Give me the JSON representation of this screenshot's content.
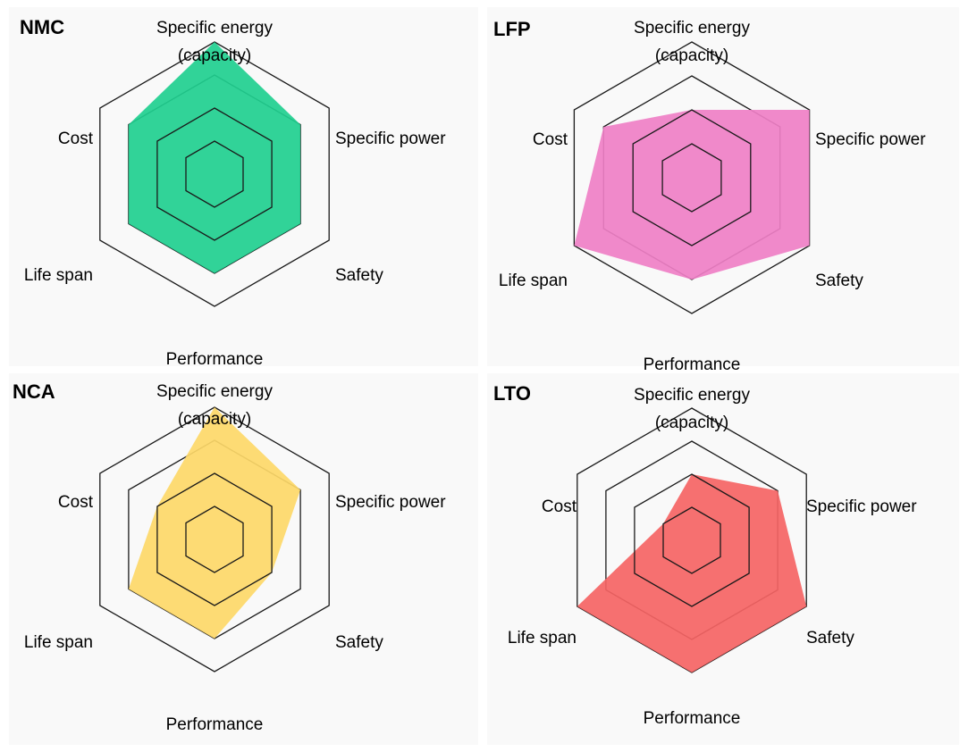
{
  "chart_data": [
    {
      "type": "radar",
      "title": "NMC",
      "axes": [
        "Specific energy (capacity)",
        "Specific power",
        "Safety",
        "Performance",
        "Life span",
        "Cost"
      ],
      "axis_label_lines": [
        [
          "Specific energy",
          "(capacity)"
        ],
        [
          "Specific power"
        ],
        [
          "Safety"
        ],
        [
          "Performance"
        ],
        [
          "Life span"
        ],
        [
          "Cost"
        ]
      ],
      "scale_max": 4,
      "rings": [
        1,
        2,
        3,
        4
      ],
      "values": [
        4,
        3,
        3,
        3,
        3,
        3
      ],
      "fill_color": "#1fcf8f"
    },
    {
      "type": "radar",
      "title": "LFP",
      "axes": [
        "Specific energy (capacity)",
        "Specific power",
        "Safety",
        "Performance",
        "Life span",
        "Cost"
      ],
      "axis_label_lines": [
        [
          "Specific energy",
          "(capacity)"
        ],
        [
          "Specific power"
        ],
        [
          "Safety"
        ],
        [
          "Performance"
        ],
        [
          "Life span"
        ],
        [
          "Cost"
        ]
      ],
      "scale_max": 4,
      "rings": [
        1,
        2,
        3,
        4
      ],
      "values": [
        2,
        4,
        4,
        3,
        4,
        3
      ],
      "fill_color": "#ef7fc6"
    },
    {
      "type": "radar",
      "title": "NCA",
      "axes": [
        "Specific energy (capacity)",
        "Specific power",
        "Safety",
        "Performance",
        "Life span",
        "Cost"
      ],
      "axis_label_lines": [
        [
          "Specific energy",
          "(capacity)"
        ],
        [
          "Specific power"
        ],
        [
          "Safety"
        ],
        [
          "Performance"
        ],
        [
          "Life span"
        ],
        [
          "Cost"
        ]
      ],
      "scale_max": 4,
      "rings": [
        1,
        2,
        3,
        4
      ],
      "values": [
        4,
        3,
        2,
        3,
        3,
        2
      ],
      "fill_color": "#fdd868"
    },
    {
      "type": "radar",
      "title": "LTO",
      "axes": [
        "Specific energy (capacity)",
        "Specific power",
        "Safety",
        "Performance",
        "Life span",
        "Cost"
      ],
      "axis_label_lines": [
        [
          "Specific energy",
          "(capacity)"
        ],
        [
          "Specific power"
        ],
        [
          "Safety"
        ],
        [
          "Performance"
        ],
        [
          "Life span"
        ],
        [
          "Cost"
        ]
      ],
      "scale_max": 4,
      "rings": [
        1,
        2,
        3,
        4
      ],
      "values": [
        2,
        3,
        4,
        4,
        4,
        1
      ],
      "fill_color": "#f56464"
    }
  ]
}
